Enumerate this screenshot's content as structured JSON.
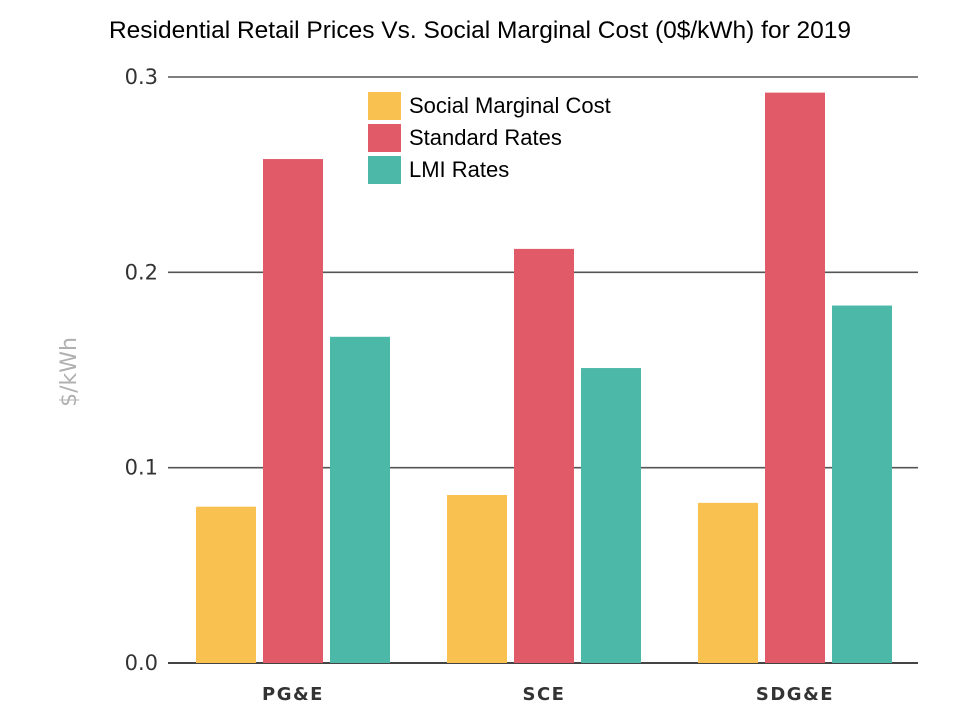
{
  "chart_data": {
    "type": "bar",
    "title": "Residential Retail Prices Vs. Social Marginal Cost (0$/kWh) for 2019",
    "xlabel": "",
    "ylabel": "$/kWh",
    "categories": [
      "PG&E",
      "SCE",
      "SDG&E"
    ],
    "series": [
      {
        "name": "Social Marginal Cost",
        "color": "#f9c14f",
        "values": [
          0.08,
          0.086,
          0.082
        ]
      },
      {
        "name": "Standard Rates",
        "color": "#e05a68",
        "values": [
          0.258,
          0.212,
          0.292
        ]
      },
      {
        "name": "LMI Rates",
        "color": "#4cb8a8",
        "values": [
          0.167,
          0.151,
          0.183
        ]
      }
    ],
    "ylim": [
      0,
      0.3
    ],
    "yticks": [
      "0.0",
      "0.1",
      "0.2",
      "0.3"
    ],
    "ytick_values": [
      0,
      0.1,
      0.2,
      0.3
    ],
    "grid": true,
    "legend_position": "top-center"
  }
}
